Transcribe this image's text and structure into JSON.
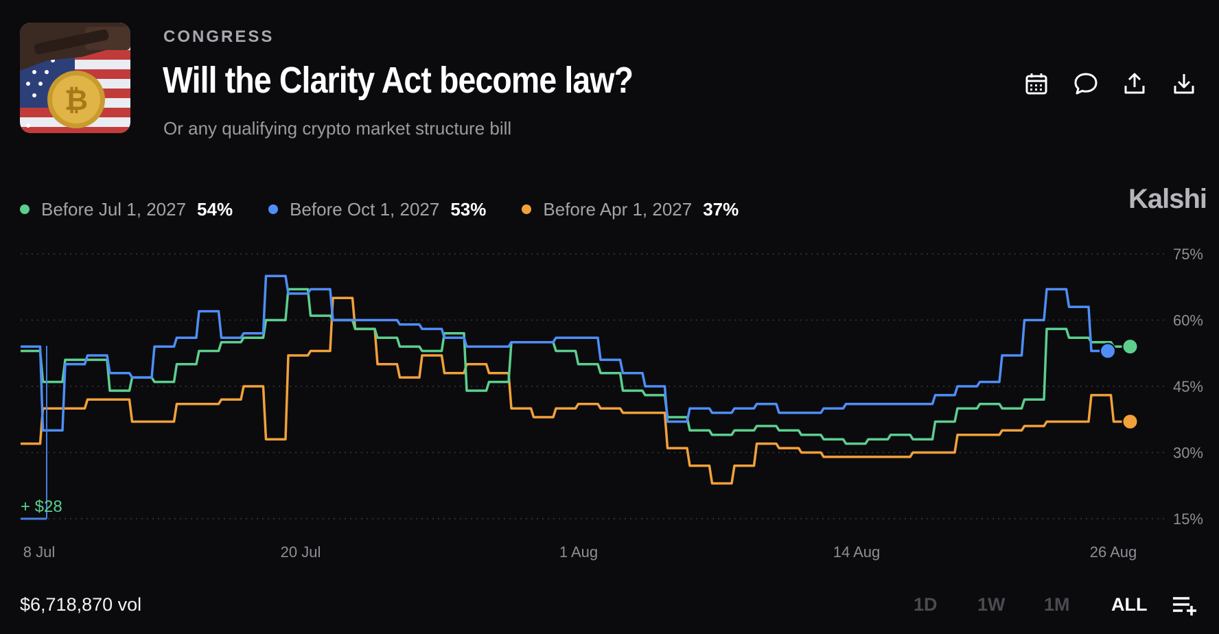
{
  "header": {
    "category": "CONGRESS",
    "title": "Will the Clarity Act become law?",
    "subtitle": "Or any qualifying crypto market structure bill"
  },
  "actions": [
    "calendar-icon",
    "comment-icon",
    "share-icon",
    "download-icon"
  ],
  "brand": "Kalshi",
  "legend": [
    {
      "label": "Before Jul 1, 2027",
      "value": "54%",
      "color": "#5ccf8e"
    },
    {
      "label": "Before Oct 1, 2027",
      "value": "53%",
      "color": "#4f8ef7"
    },
    {
      "label": "Before Apr 1, 2027",
      "value": "37%",
      "color": "#f2a13a"
    }
  ],
  "annotation": "+ $28",
  "footer": {
    "volume": "$6,718,870 vol",
    "ranges": [
      "1D",
      "1W",
      "1M",
      "ALL"
    ],
    "active_range": "ALL"
  },
  "chart_data": {
    "type": "line",
    "x_type": "date",
    "xlim": [
      "2025-07-08",
      "2025-08-27"
    ],
    "ylim": [
      10,
      80
    ],
    "y_ticks": [
      15,
      30,
      45,
      60,
      75
    ],
    "y_tick_labels": [
      "15%",
      "30%",
      "45%",
      "60%",
      "75%"
    ],
    "x_ticks": [
      "8 Jul",
      "20 Jul",
      "1 Aug",
      "14 Aug",
      "26 Aug"
    ],
    "grid": true,
    "series": [
      {
        "name": "Before Jul 1, 2027",
        "color": "#5ccf8e",
        "points": [
          [
            "2025-07-08",
            53
          ],
          [
            "2025-07-09",
            46
          ],
          [
            "2025-07-10",
            51
          ],
          [
            "2025-07-12",
            44
          ],
          [
            "2025-07-13",
            47
          ],
          [
            "2025-07-14",
            46
          ],
          [
            "2025-07-15",
            50
          ],
          [
            "2025-07-16",
            53
          ],
          [
            "2025-07-17",
            55
          ],
          [
            "2025-07-18",
            56
          ],
          [
            "2025-07-19",
            60
          ],
          [
            "2025-07-20",
            67
          ],
          [
            "2025-07-21",
            61
          ],
          [
            "2025-07-22",
            60
          ],
          [
            "2025-07-23",
            58
          ],
          [
            "2025-07-24",
            56
          ],
          [
            "2025-07-25",
            54
          ],
          [
            "2025-07-26",
            53
          ],
          [
            "2025-07-27",
            57
          ],
          [
            "2025-07-28",
            44
          ],
          [
            "2025-07-29",
            46
          ],
          [
            "2025-07-30",
            55
          ],
          [
            "2025-08-01",
            53
          ],
          [
            "2025-08-02",
            50
          ],
          [
            "2025-08-03",
            48
          ],
          [
            "2025-08-04",
            44
          ],
          [
            "2025-08-05",
            43
          ],
          [
            "2025-08-06",
            38
          ],
          [
            "2025-08-07",
            35
          ],
          [
            "2025-08-08",
            34
          ],
          [
            "2025-08-09",
            35
          ],
          [
            "2025-08-10",
            36
          ],
          [
            "2025-08-11",
            35
          ],
          [
            "2025-08-12",
            34
          ],
          [
            "2025-08-13",
            33
          ],
          [
            "2025-08-14",
            32
          ],
          [
            "2025-08-15",
            33
          ],
          [
            "2025-08-16",
            34
          ],
          [
            "2025-08-17",
            33
          ],
          [
            "2025-08-18",
            37
          ],
          [
            "2025-08-19",
            40
          ],
          [
            "2025-08-20",
            41
          ],
          [
            "2025-08-21",
            40
          ],
          [
            "2025-08-22",
            42
          ],
          [
            "2025-08-23",
            58
          ],
          [
            "2025-08-24",
            56
          ],
          [
            "2025-08-25",
            55
          ],
          [
            "2025-08-26",
            54
          ]
        ]
      },
      {
        "name": "Before Oct 1, 2027",
        "color": "#4f8ef7",
        "points": [
          [
            "2025-07-08",
            54
          ],
          [
            "2025-07-09",
            35
          ],
          [
            "2025-07-10",
            50
          ],
          [
            "2025-07-11",
            52
          ],
          [
            "2025-07-12",
            48
          ],
          [
            "2025-07-13",
            47
          ],
          [
            "2025-07-14",
            54
          ],
          [
            "2025-07-15",
            56
          ],
          [
            "2025-07-16",
            62
          ],
          [
            "2025-07-17",
            56
          ],
          [
            "2025-07-18",
            57
          ],
          [
            "2025-07-19",
            70
          ],
          [
            "2025-07-20",
            66
          ],
          [
            "2025-07-21",
            67
          ],
          [
            "2025-07-22",
            60
          ],
          [
            "2025-07-24",
            60
          ],
          [
            "2025-07-25",
            59
          ],
          [
            "2025-07-26",
            58
          ],
          [
            "2025-07-27",
            56
          ],
          [
            "2025-07-28",
            54
          ],
          [
            "2025-07-30",
            55
          ],
          [
            "2025-08-01",
            56
          ],
          [
            "2025-08-03",
            51
          ],
          [
            "2025-08-04",
            48
          ],
          [
            "2025-08-05",
            45
          ],
          [
            "2025-08-06",
            37
          ],
          [
            "2025-08-07",
            40
          ],
          [
            "2025-08-08",
            39
          ],
          [
            "2025-08-09",
            40
          ],
          [
            "2025-08-10",
            41
          ],
          [
            "2025-08-11",
            39
          ],
          [
            "2025-08-13",
            40
          ],
          [
            "2025-08-14",
            41
          ],
          [
            "2025-08-18",
            43
          ],
          [
            "2025-08-19",
            45
          ],
          [
            "2025-08-20",
            46
          ],
          [
            "2025-08-21",
            52
          ],
          [
            "2025-08-22",
            60
          ],
          [
            "2025-08-23",
            67
          ],
          [
            "2025-08-24",
            63
          ],
          [
            "2025-08-25",
            53
          ]
        ]
      },
      {
        "name": "Before Apr 1, 2027",
        "color": "#f2a13a",
        "points": [
          [
            "2025-07-08",
            32
          ],
          [
            "2025-07-09",
            40
          ],
          [
            "2025-07-10",
            40
          ],
          [
            "2025-07-11",
            42
          ],
          [
            "2025-07-13",
            37
          ],
          [
            "2025-07-15",
            41
          ],
          [
            "2025-07-17",
            42
          ],
          [
            "2025-07-18",
            45
          ],
          [
            "2025-07-19",
            33
          ],
          [
            "2025-07-20",
            52
          ],
          [
            "2025-07-21",
            53
          ],
          [
            "2025-07-22",
            65
          ],
          [
            "2025-07-23",
            58
          ],
          [
            "2025-07-24",
            50
          ],
          [
            "2025-07-25",
            47
          ],
          [
            "2025-07-26",
            52
          ],
          [
            "2025-07-27",
            48
          ],
          [
            "2025-07-28",
            50
          ],
          [
            "2025-07-29",
            48
          ],
          [
            "2025-07-30",
            40
          ],
          [
            "2025-07-31",
            38
          ],
          [
            "2025-08-01",
            40
          ],
          [
            "2025-08-02",
            41
          ],
          [
            "2025-08-03",
            40
          ],
          [
            "2025-08-04",
            39
          ],
          [
            "2025-08-06",
            31
          ],
          [
            "2025-08-07",
            27
          ],
          [
            "2025-08-08",
            23
          ],
          [
            "2025-08-09",
            27
          ],
          [
            "2025-08-10",
            32
          ],
          [
            "2025-08-11",
            31
          ],
          [
            "2025-08-12",
            30
          ],
          [
            "2025-08-13",
            29
          ],
          [
            "2025-08-17",
            30
          ],
          [
            "2025-08-19",
            34
          ],
          [
            "2025-08-21",
            35
          ],
          [
            "2025-08-22",
            36
          ],
          [
            "2025-08-23",
            37
          ],
          [
            "2025-08-25",
            43
          ],
          [
            "2025-08-26",
            37
          ]
        ]
      }
    ]
  }
}
